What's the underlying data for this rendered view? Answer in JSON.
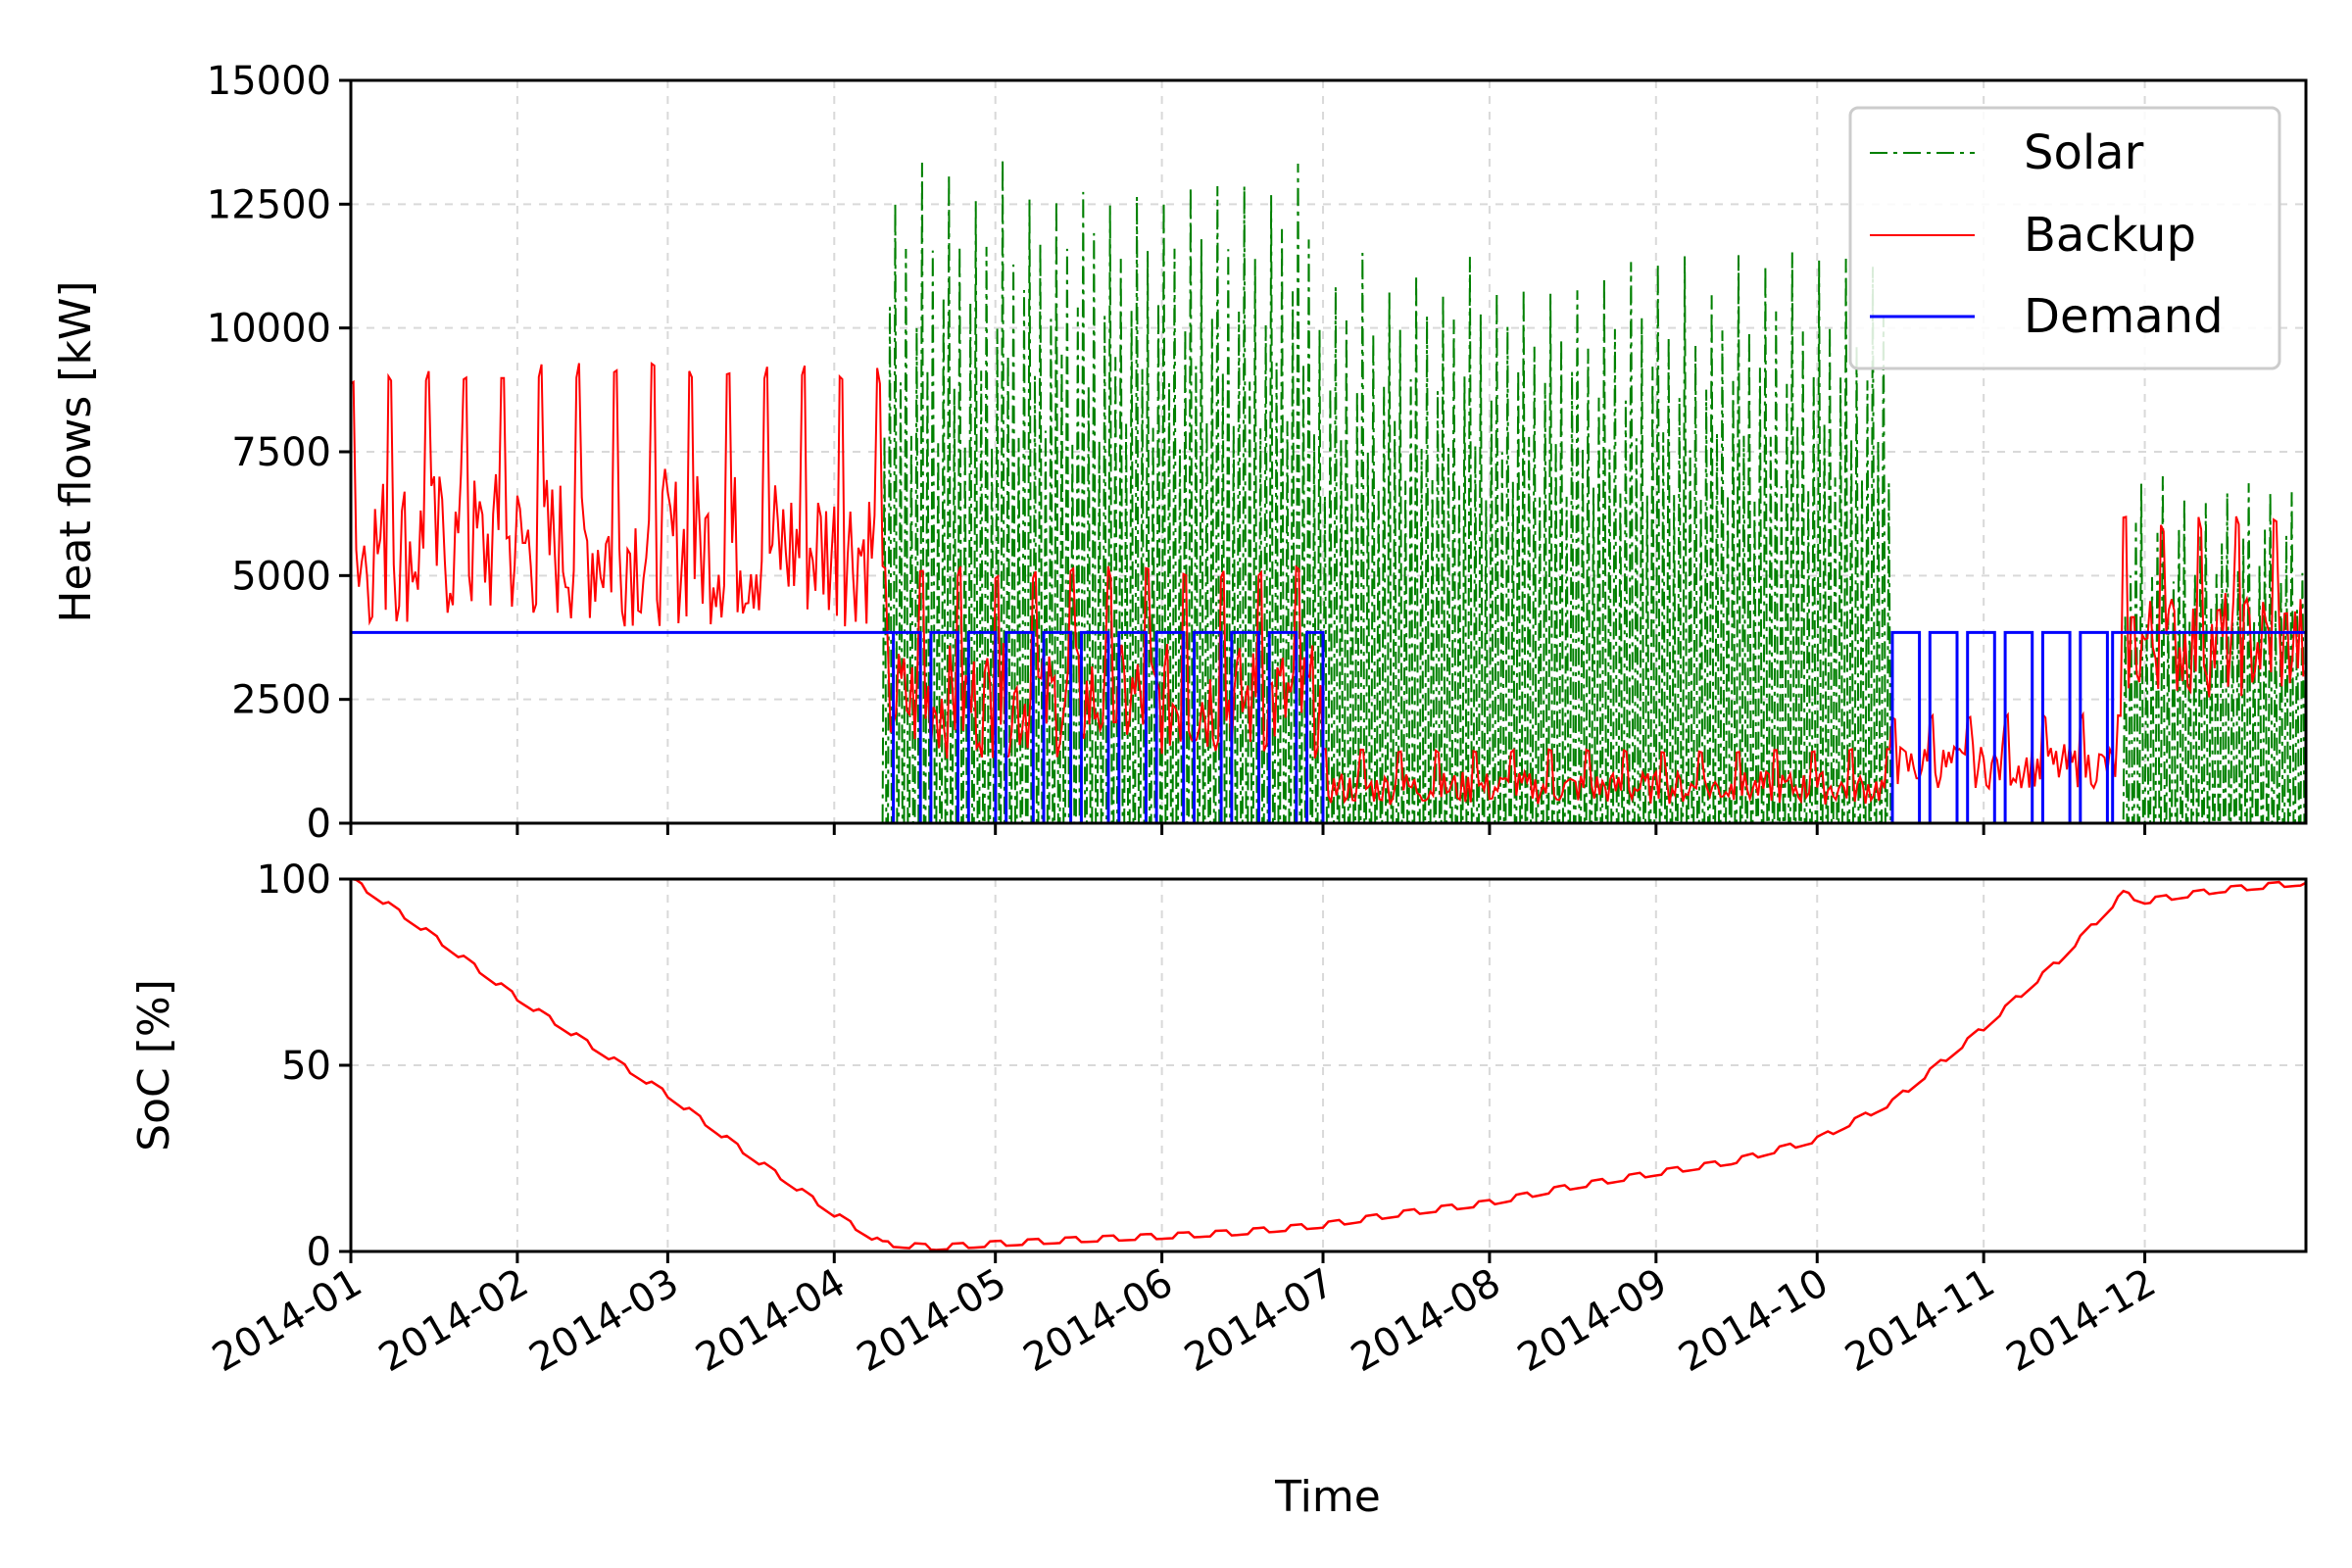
{
  "chart_data": [
    {
      "type": "line",
      "ylabel": "Heat flows [kW]",
      "xlabel": "",
      "ylim": [
        0,
        15000
      ],
      "yticks": [
        0,
        2500,
        5000,
        7500,
        10000,
        12500,
        15000
      ],
      "xlim": [
        "2014-01-01",
        "2014-12-31"
      ],
      "grid": true,
      "legend": "top-right",
      "series": [
        {
          "name": "Solar",
          "color": "#008000",
          "style": "dashdot",
          "segments": [
            {
              "from": "2014-01-01",
              "to": "2014-04-10",
              "envelope_max": 0,
              "envelope_min": 0
            },
            {
              "from": "2014-04-10",
              "to": "2014-07-01",
              "envelope_max": 14800,
              "envelope_min": 0,
              "period_days": 2.5
            },
            {
              "from": "2014-07-01",
              "to": "2014-10-15",
              "envelope_max": 12700,
              "envelope_min": 0,
              "period_days": 2.5
            },
            {
              "from": "2014-10-15",
              "to": "2014-11-27",
              "envelope_max": 0,
              "envelope_min": 0
            },
            {
              "from": "2014-11-27",
              "to": "2014-12-31",
              "envelope_max": 7900,
              "envelope_min": 0,
              "period_days": 4
            }
          ]
        },
        {
          "name": "Backup",
          "color": "#ff0000",
          "style": "solid",
          "segments": [
            {
              "from": "2014-01-01",
              "to": "2014-04-10",
              "envelope_max": 9300,
              "envelope_min": 2200,
              "period_days": 7
            },
            {
              "from": "2014-04-10",
              "to": "2014-07-01",
              "envelope_max": 5200,
              "envelope_min": 0,
              "period_days": 7
            },
            {
              "from": "2014-07-01",
              "to": "2014-10-15",
              "envelope_max": 1500,
              "envelope_min": 0,
              "period_days": 7
            },
            {
              "from": "2014-10-15",
              "to": "2014-11-27",
              "envelope_max": 2200,
              "envelope_min": 200,
              "period_days": 7
            },
            {
              "from": "2014-11-27",
              "to": "2014-12-31",
              "envelope_max": 6200,
              "envelope_min": 1300,
              "period_days": 7
            }
          ]
        },
        {
          "name": "Demand",
          "color": "#0000ff",
          "style": "solid",
          "segments": [
            {
              "from": "2014-01-01",
              "to": "2014-04-12",
              "level": 3850,
              "pattern": "constant"
            },
            {
              "from": "2014-04-12",
              "to": "2014-07-01",
              "level": 3850,
              "pattern": "on-off",
              "period_days": 7
            },
            {
              "from": "2014-07-01",
              "to": "2014-10-15",
              "level": 0,
              "pattern": "constant"
            },
            {
              "from": "2014-10-15",
              "to": "2014-11-25",
              "level": 3850,
              "pattern": "on-off",
              "period_days": 7
            },
            {
              "from": "2014-11-25",
              "to": "2014-12-31",
              "level": 3850,
              "pattern": "constant"
            }
          ]
        }
      ]
    },
    {
      "type": "line",
      "ylabel": "SoC [%]",
      "xlabel": "Time",
      "ylim": [
        0,
        100
      ],
      "yticks": [
        0,
        50,
        100
      ],
      "xlim": [
        "2014-01-01",
        "2014-12-31"
      ],
      "grid": true,
      "categories": [
        "2014-01",
        "2014-02",
        "2014-03",
        "2014-04",
        "2014-05",
        "2014-06",
        "2014-07",
        "2014-08",
        "2014-09",
        "2014-10",
        "2014-11",
        "2014-12"
      ],
      "series": [
        {
          "name": "",
          "color": "#ff0000",
          "x": [
            "2014-01-01",
            "2014-01-15",
            "2014-02-01",
            "2014-02-15",
            "2014-03-01",
            "2014-03-15",
            "2014-04-01",
            "2014-04-10",
            "2014-04-20",
            "2014-05-01",
            "2014-05-15",
            "2014-06-01",
            "2014-06-15",
            "2014-07-01",
            "2014-07-15",
            "2014-08-01",
            "2014-08-15",
            "2014-09-01",
            "2014-09-15",
            "2014-10-01",
            "2014-10-15",
            "2014-11-01",
            "2014-11-15",
            "2014-11-27",
            "2014-12-01",
            "2014-12-15",
            "2014-12-31"
          ],
          "y": [
            100,
            86,
            68,
            55,
            42,
            27,
            10,
            2,
            1,
            2,
            3,
            4,
            5,
            7,
            10,
            13,
            17,
            21,
            24,
            30,
            40,
            60,
            78,
            96,
            94,
            97,
            99
          ]
        }
      ]
    }
  ]
}
